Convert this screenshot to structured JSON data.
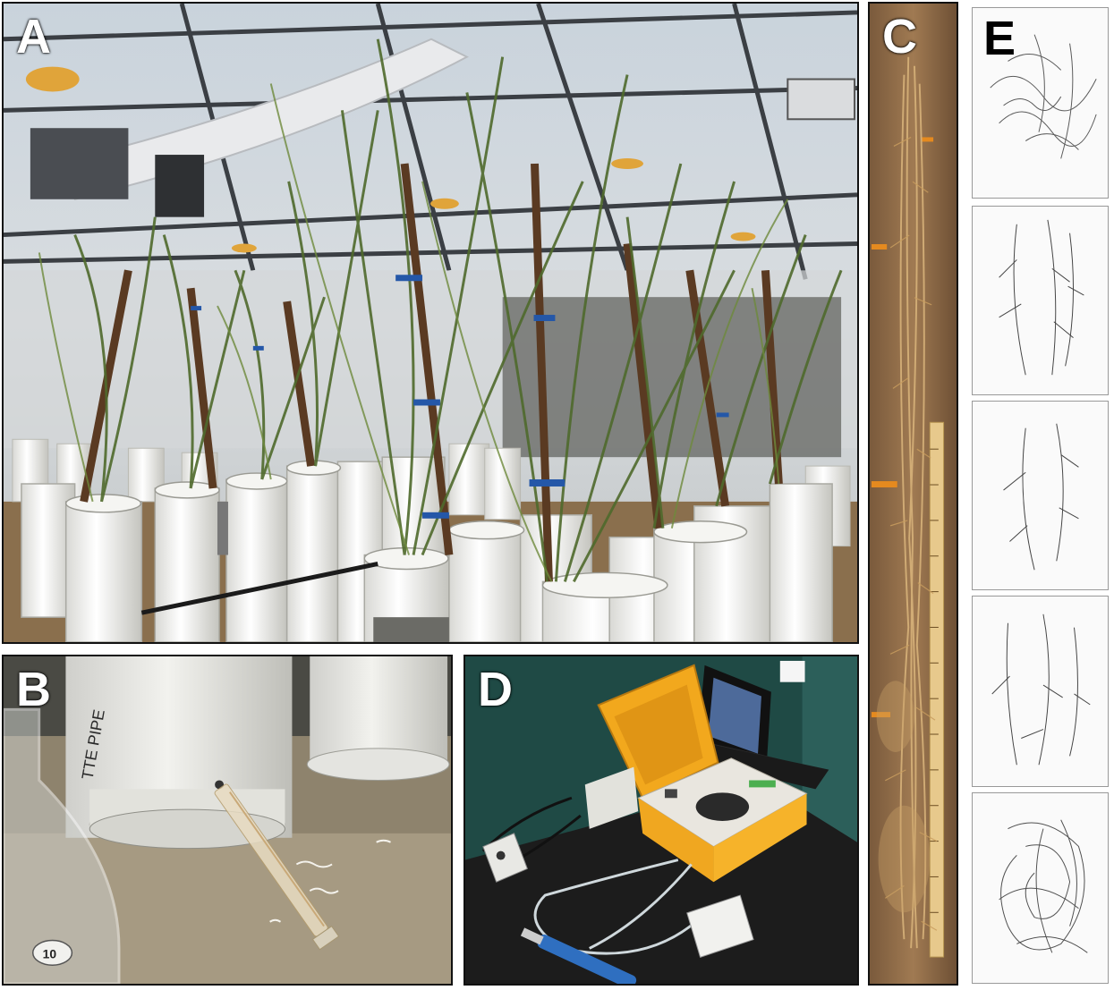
{
  "figure": {
    "panels": [
      {
        "id": "A",
        "label": "A"
      },
      {
        "id": "B",
        "label": "B"
      },
      {
        "id": "C",
        "label": "C"
      },
      {
        "id": "D",
        "label": "D"
      },
      {
        "id": "E",
        "label": "E"
      }
    ]
  },
  "scene_text": {
    "pipe_text_b": "TTE PIPE",
    "flask_mark": "10"
  }
}
